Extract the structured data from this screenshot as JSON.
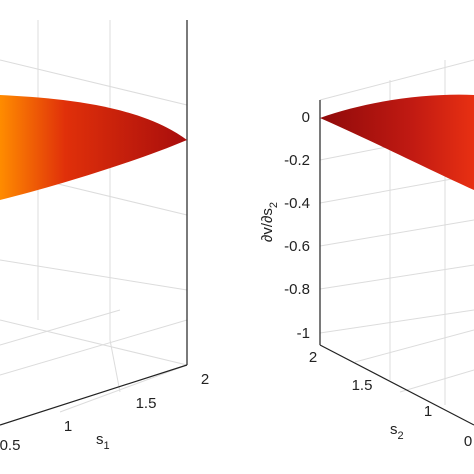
{
  "left_plot": {
    "x_label": "s",
    "x_label_sub": "1",
    "x_ticks": [
      "0.5",
      "1",
      "1.5",
      "2"
    ]
  },
  "right_plot": {
    "z_label": "∂v/∂s",
    "z_label_sub": "2",
    "z_ticks": [
      "0",
      "-0.2",
      "-0.4",
      "-0.6",
      "-0.8",
      "-1"
    ],
    "y_label": "s",
    "y_label_sub": "2",
    "y_ticks": [
      "2",
      "1.5",
      "1"
    ],
    "x_ticks": [
      "0"
    ]
  }
}
